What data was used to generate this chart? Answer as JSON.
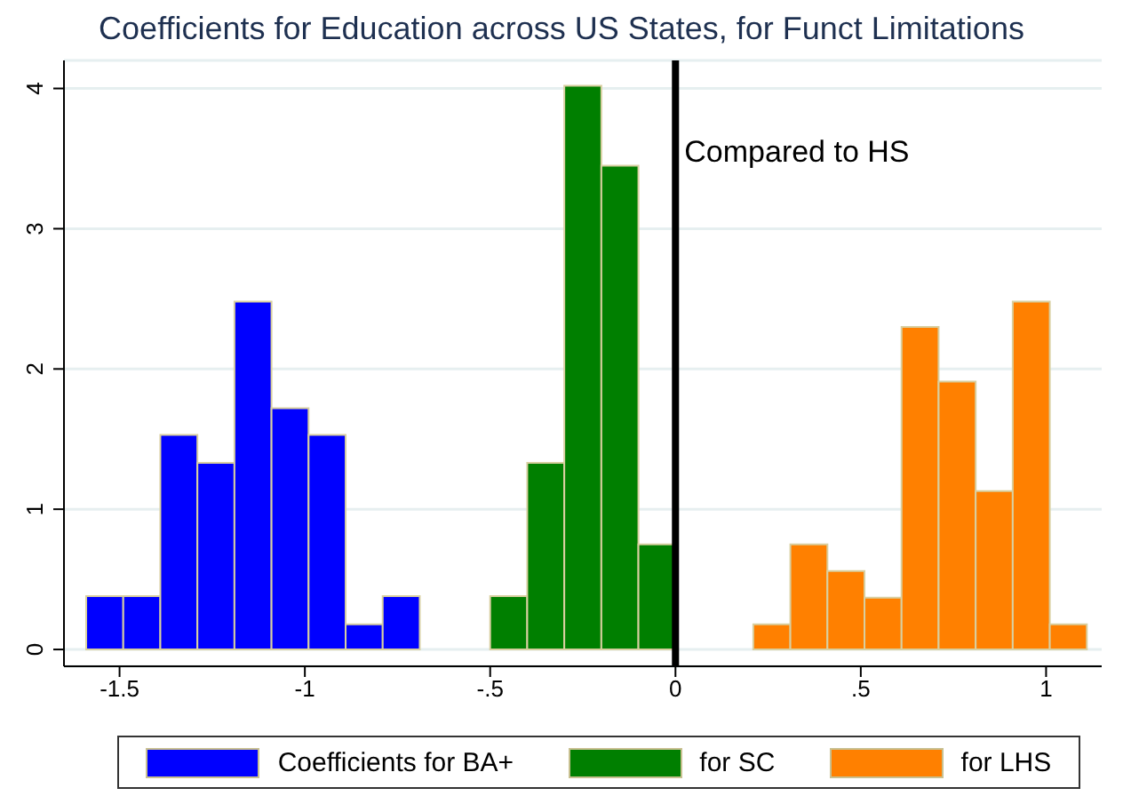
{
  "chart_data": {
    "type": "histogram",
    "title": "Coefficients for Education across US States, for Funct Limitations",
    "bins": [
      -1.59,
      -1.49,
      -1.39,
      -1.29,
      -1.19,
      -1.09,
      -0.99,
      -0.89,
      -0.79,
      -0.69,
      -0.5,
      -0.4,
      -0.3,
      -0.2,
      -0.1,
      0.0,
      0.21,
      0.31,
      0.41,
      0.51,
      0.61,
      0.71,
      0.81,
      0.91,
      1.01,
      1.11
    ],
    "series": [
      {
        "name": "Coefficients for BA+",
        "color": "#0000ff",
        "values": [
          0.38,
          0.38,
          1.53,
          1.33,
          2.48,
          1.72,
          1.53,
          0.18,
          0.38,
          null,
          null,
          null,
          null,
          null,
          null,
          null,
          null,
          null,
          null,
          null,
          null,
          null,
          null,
          null,
          null
        ]
      },
      {
        "name": "for SC",
        "color": "#007f00",
        "values": [
          null,
          null,
          null,
          null,
          null,
          null,
          null,
          null,
          null,
          null,
          0.38,
          1.33,
          4.02,
          3.45,
          0.75,
          null,
          null,
          null,
          null,
          null,
          null,
          null,
          null,
          null,
          null
        ]
      },
      {
        "name": "for LHS",
        "color": "#ff8000",
        "values": [
          null,
          null,
          null,
          null,
          null,
          null,
          null,
          null,
          null,
          null,
          null,
          null,
          null,
          null,
          null,
          null,
          0.18,
          0.75,
          0.56,
          0.37,
          2.3,
          1.91,
          1.13,
          2.48,
          0.18
        ]
      }
    ],
    "xlim": [
      -1.65,
      1.15
    ],
    "xticks": [
      {
        "value": -1.5,
        "label": "-1.5"
      },
      {
        "value": -1,
        "label": "-1"
      },
      {
        "value": -0.5,
        "label": "-.5"
      },
      {
        "value": 0,
        "label": "0"
      },
      {
        "value": 0.5,
        "label": ".5"
      },
      {
        "value": 1,
        "label": "1"
      }
    ],
    "ylim": [
      -0.12,
      4.2
    ],
    "yticks": [
      0,
      1,
      2,
      3,
      4
    ],
    "ref_lines": [
      {
        "axis": "x",
        "value": 0,
        "label": "Compared to HS",
        "color": "#000000"
      }
    ],
    "grid": "y",
    "legend": "bottom"
  }
}
